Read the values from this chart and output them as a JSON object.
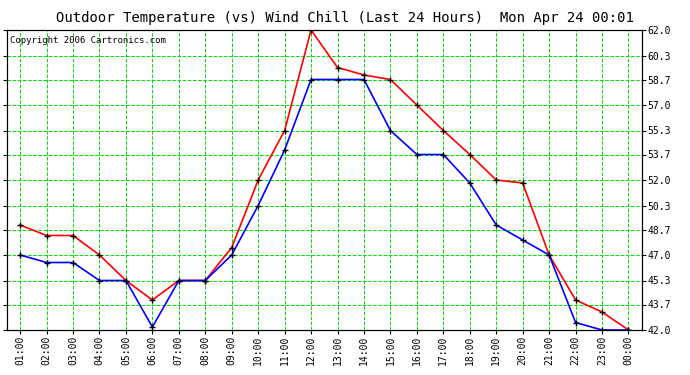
{
  "title": "Outdoor Temperature (vs) Wind Chill (Last 24 Hours)  Mon Apr 24 00:01",
  "copyright": "Copyright 2006 Cartronics.com",
  "x_labels": [
    "01:00",
    "02:00",
    "03:00",
    "04:00",
    "05:00",
    "06:00",
    "07:00",
    "08:00",
    "09:00",
    "10:00",
    "11:00",
    "12:00",
    "13:00",
    "14:00",
    "15:00",
    "16:00",
    "17:00",
    "18:00",
    "19:00",
    "20:00",
    "21:00",
    "22:00",
    "23:00",
    "00:00"
  ],
  "temp_red": [
    49.0,
    48.3,
    48.3,
    47.0,
    45.3,
    44.0,
    45.3,
    45.3,
    47.5,
    52.0,
    55.3,
    62.0,
    59.5,
    59.0,
    58.7,
    57.0,
    55.3,
    53.7,
    52.0,
    51.8,
    47.0,
    44.0,
    43.2,
    42.0
  ],
  "wind_blue": [
    47.0,
    46.5,
    46.5,
    45.3,
    45.3,
    42.2,
    45.3,
    45.3,
    47.0,
    50.3,
    54.0,
    58.7,
    58.7,
    58.7,
    55.3,
    53.7,
    53.7,
    51.8,
    49.0,
    48.0,
    47.0,
    42.5,
    42.0,
    42.0
  ],
  "y_ticks": [
    42.0,
    43.7,
    45.3,
    47.0,
    48.7,
    50.3,
    52.0,
    53.7,
    55.3,
    57.0,
    58.7,
    60.3,
    62.0
  ],
  "y_min": 42.0,
  "y_max": 62.0,
  "bg_color": "#ffffff",
  "plot_bg_color": "#ffffff",
  "grid_major_color": "#00dd00",
  "grid_minor_color": "#00dd00",
  "red_color": "#ff0000",
  "blue_color": "#0000ff",
  "marker_color": "#000000",
  "title_color": "#000000",
  "copyright_color": "#000000",
  "title_fontsize": 10,
  "copyright_fontsize": 6.5,
  "tick_fontsize": 7
}
